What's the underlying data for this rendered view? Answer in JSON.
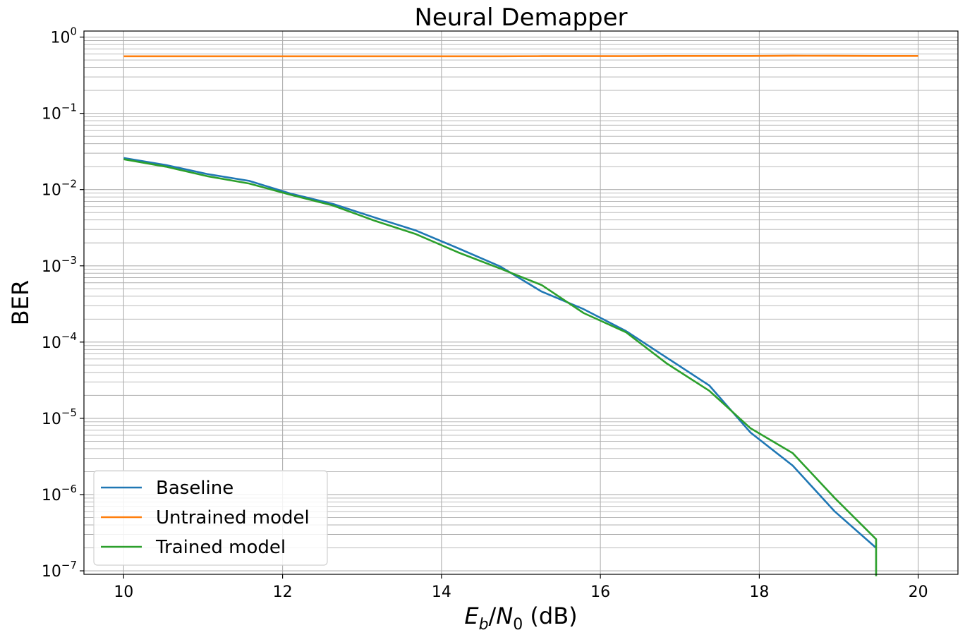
{
  "chart_data": {
    "type": "line",
    "title": "Neural Demapper",
    "xlabel": "E_b/N_0 (dB)",
    "xlabel_parts": {
      "e": "E",
      "e_sub": "b",
      "slash": "/",
      "n": "N",
      "n_sub": "0",
      "suffix": " (dB)"
    },
    "ylabel": "BER",
    "xlim": [
      9.5,
      20.5
    ],
    "ylim": [
      9e-08,
      1.2
    ],
    "yscale": "log",
    "grid": "both",
    "x_ticks": [
      10,
      12,
      14,
      16,
      18,
      20
    ],
    "x_tick_labels": [
      "10",
      "12",
      "14",
      "16",
      "18",
      "20"
    ],
    "y_ticks": [
      {
        "value": 1e-07,
        "base": "10",
        "exp": "−7"
      },
      {
        "value": 1e-06,
        "base": "10",
        "exp": "−6"
      },
      {
        "value": 1e-05,
        "base": "10",
        "exp": "−5"
      },
      {
        "value": 0.0001,
        "base": "10",
        "exp": "−4"
      },
      {
        "value": 0.001,
        "base": "10",
        "exp": "−3"
      },
      {
        "value": 0.01,
        "base": "10",
        "exp": "−2"
      },
      {
        "value": 0.1,
        "base": "10",
        "exp": "−1"
      },
      {
        "value": 1,
        "base": "10",
        "exp": "0"
      }
    ],
    "legend_position": "lower-left",
    "series": [
      {
        "name": "Baseline",
        "color": "#1f77b4",
        "x": [
          10.0,
          10.53,
          11.05,
          11.58,
          12.11,
          12.63,
          13.16,
          13.68,
          14.21,
          14.74,
          15.26,
          15.79,
          16.32,
          16.84,
          17.37,
          17.89,
          18.42,
          18.95,
          19.47
        ],
        "y": [
          0.026,
          0.021,
          0.016,
          0.013,
          0.0088,
          0.0065,
          0.0043,
          0.0029,
          0.0017,
          0.00098,
          0.00046,
          0.00027,
          0.00014,
          6.2e-05,
          2.7e-05,
          6.5e-06,
          2.4e-06,
          6e-07,
          2e-07
        ]
      },
      {
        "name": "Untrained model",
        "color": "#ff7f0e",
        "x": [
          10.0,
          10.53,
          11.05,
          11.58,
          12.11,
          12.63,
          13.16,
          13.68,
          14.21,
          14.74,
          15.26,
          15.79,
          16.32,
          16.84,
          17.37,
          17.89,
          18.42,
          18.95,
          19.47,
          20.0
        ],
        "y": [
          0.56,
          0.56,
          0.56,
          0.56,
          0.56,
          0.56,
          0.56,
          0.56,
          0.56,
          0.56,
          0.562,
          0.562,
          0.562,
          0.565,
          0.565,
          0.565,
          0.57,
          0.568,
          0.566,
          0.565
        ]
      },
      {
        "name": "Trained model",
        "color": "#2ca02c",
        "x": [
          10.0,
          10.53,
          11.05,
          11.58,
          12.11,
          12.63,
          13.16,
          13.68,
          14.21,
          14.74,
          15.26,
          15.79,
          16.32,
          16.84,
          17.37,
          17.89,
          18.42,
          18.95,
          19.47,
          19.47
        ],
        "y": [
          0.025,
          0.02,
          0.015,
          0.012,
          0.0085,
          0.0062,
          0.0039,
          0.0026,
          0.0015,
          0.00092,
          0.00056,
          0.00024,
          0.000135,
          5.2e-05,
          2.3e-05,
          7.4e-06,
          3.5e-06,
          9e-07,
          2.6e-07,
          8.5e-08
        ]
      }
    ]
  }
}
